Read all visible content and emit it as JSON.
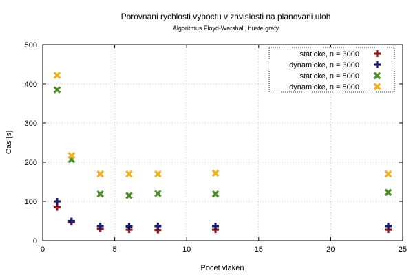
{
  "chart_data": {
    "type": "scatter",
    "title": "Porovnani rychlosti vypoctu v zavislosti na planovani uloh",
    "subtitle": "Algoritmus Floyd-Warshall, huste grafy",
    "xlabel": "Pocet vlaken",
    "ylabel": "Cas [s]",
    "xlim": [
      0,
      25
    ],
    "ylim": [
      0,
      500
    ],
    "xticks": [
      0,
      5,
      10,
      15,
      20,
      25
    ],
    "yticks": [
      0,
      100,
      200,
      300,
      400,
      500
    ],
    "grid": true,
    "legend_position": "top-right",
    "series": [
      {
        "name": "staticke, n = 3000",
        "marker": "plus",
        "color": "#8b1a1a",
        "x": [
          1,
          2,
          4,
          6,
          8,
          12,
          24
        ],
        "y": [
          85,
          47,
          30,
          28,
          27,
          28,
          28
        ]
      },
      {
        "name": "dynamicke, n = 3000",
        "marker": "plus",
        "color": "#1a1a66",
        "x": [
          1,
          2,
          4,
          6,
          8,
          12,
          24
        ],
        "y": [
          100,
          50,
          37,
          36,
          37,
          37,
          37
        ]
      },
      {
        "name": "staticke, n = 5000",
        "marker": "cross",
        "color": "#4e8f28",
        "x": [
          1,
          2,
          4,
          6,
          8,
          12,
          24
        ],
        "y": [
          385,
          207,
          119,
          115,
          120,
          119,
          123
        ]
      },
      {
        "name": "dynamicke, n = 5000",
        "marker": "cross",
        "color": "#f0b020",
        "x": [
          1,
          2,
          4,
          6,
          8,
          12,
          24
        ],
        "y": [
          422,
          217,
          170,
          170,
          170,
          172,
          170
        ]
      }
    ]
  }
}
